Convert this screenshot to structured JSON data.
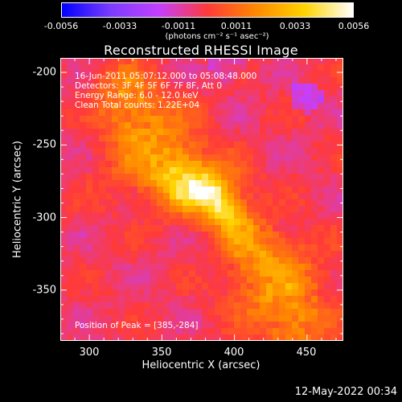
{
  "colorbar": {
    "tick_labels": [
      "-0.0056",
      "-0.0033",
      "-0.0011",
      "0.0011",
      "0.0033",
      "0.0056"
    ],
    "unit_label": "(photons cm⁻² s⁻¹ asec⁻²)",
    "range": [
      -0.0056,
      0.0056
    ],
    "colormap": [
      "#0000ff",
      "#7a3cff",
      "#c43fff",
      "#ff3a3a",
      "#ff8800",
      "#ffd400",
      "#ffffff"
    ]
  },
  "chart_data": {
    "type": "heatmap",
    "title": "Reconstructed RHESSI Image",
    "xlabel": "Heliocentric X (arcsec)",
    "ylabel": "Heliocentric Y (arcsec)",
    "xlim": [
      280,
      475
    ],
    "ylim": [
      -385,
      -190
    ],
    "x_ticks": [
      300,
      350,
      400,
      450
    ],
    "y_ticks": [
      -200,
      -250,
      -300,
      -350
    ],
    "annotations": {
      "time_range": "16-Jun-2011 05:07:12.000 to 05:08:48.000",
      "detectors": "Detectors: 3F 4F 5F 6F 7F 8F, Att 0",
      "energy_range": "Energy Range: 6.0 - 12.0 keV",
      "method": "Clean      Total counts: 1.22E+04",
      "peak": "Position of Peak = [385,-284]"
    },
    "peak_position": [
      385,
      -284
    ],
    "peak_value": 0.0056,
    "emission_ridge": [
      [
        325,
        -215
      ],
      [
        345,
        -255
      ],
      [
        365,
        -275
      ],
      [
        385,
        -284
      ],
      [
        405,
        -310
      ],
      [
        425,
        -340
      ],
      [
        440,
        -370
      ]
    ]
  },
  "footer": {
    "date": "12-May-2022 00:34"
  }
}
